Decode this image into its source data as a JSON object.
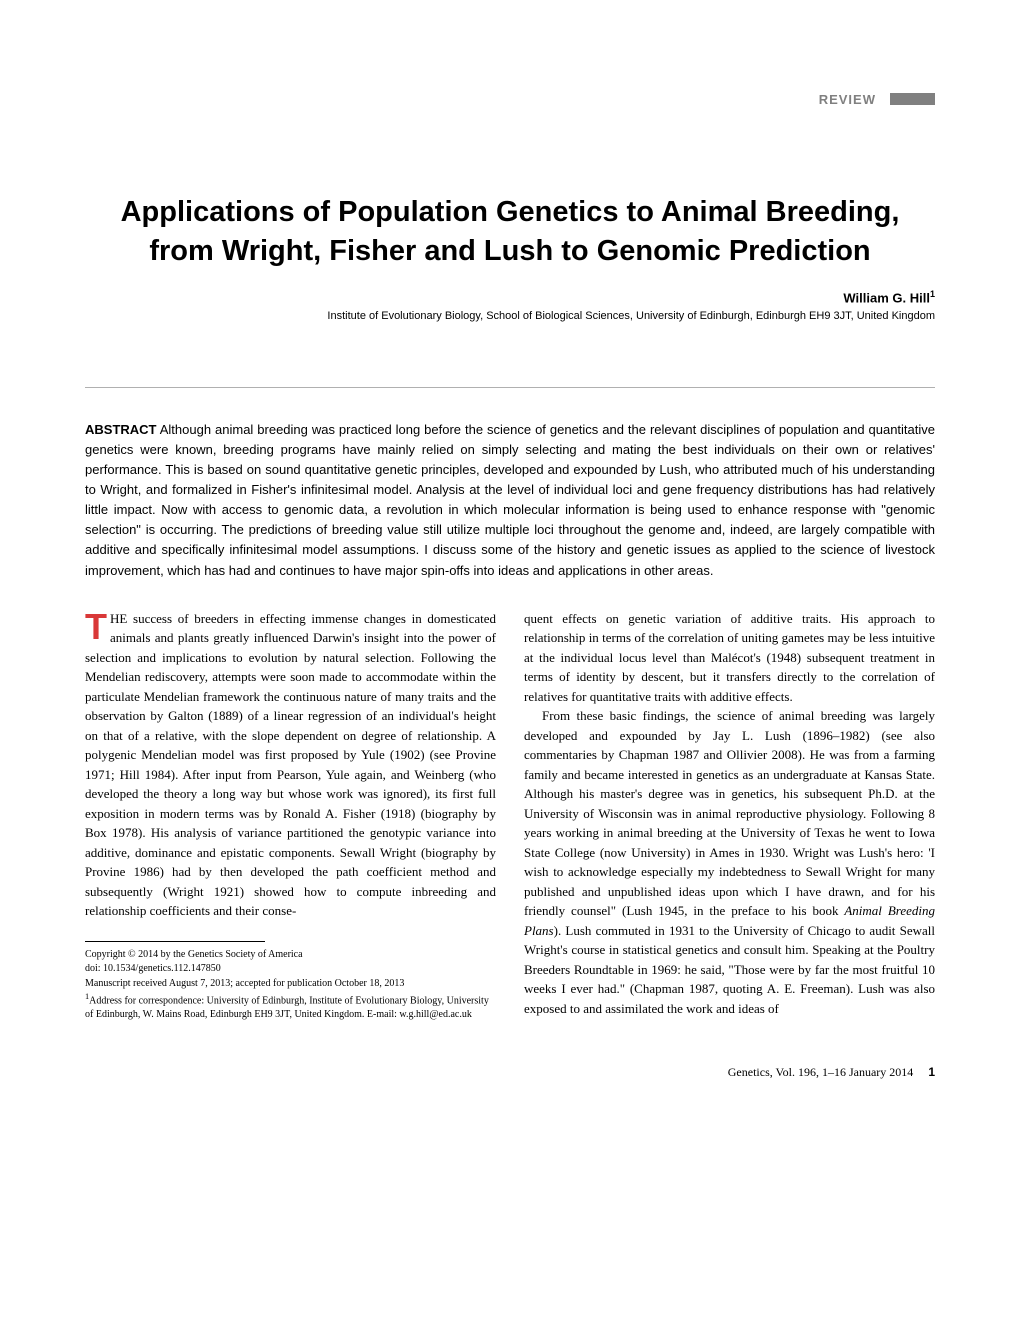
{
  "header": {
    "review_label": "REVIEW"
  },
  "title": "Applications of Population Genetics to Animal Breeding, from Wright, Fisher and Lush to Genomic Prediction",
  "author": {
    "name": "William G. Hill",
    "sup": "1"
  },
  "affiliation": "Institute of Evolutionary Biology, School of Biological Sciences, University of Edinburgh, Edinburgh EH9 3JT, United Kingdom",
  "abstract": {
    "label": "ABSTRACT",
    "text": " Although animal breeding was practiced long before the science of genetics and the relevant disciplines of population and quantitative genetics were known, breeding programs have mainly relied on simply selecting and mating the best individuals on their own or relatives' performance. This is based on sound quantitative genetic principles, developed and expounded by Lush, who attributed much of his understanding to Wright, and formalized in Fisher's infinitesimal model. Analysis at the level of individual loci and gene frequency distributions has had relatively little impact. Now with access to genomic data, a revolution in which molecular information is being used to enhance response with \"genomic selection\" is occurring. The predictions of breeding value still utilize multiple loci throughout the genome and, indeed, are largely compatible with additive and specifically infinitesimal model assumptions. I discuss some of the history and genetic issues as applied to the science of livestock improvement, which has had and continues to have major spin-offs into ideas and applications in other areas."
  },
  "body": {
    "col1": {
      "dropcap": "T",
      "first_word_rest": "HE",
      "p1": " success of breeders in effecting immense changes in domesticated animals and plants greatly influenced Darwin's insight into the power of selection and implications to evolution by natural selection. Following the Mendelian rediscovery, attempts were soon made to accommodate within the particulate Mendelian framework the continuous nature of many traits and the observation by Galton (1889) of a linear regression of an individual's height on that of a relative, with the slope dependent on degree of relationship. A polygenic Mendelian model was first proposed by Yule (1902) (see Provine 1971; Hill 1984). After input from Pearson, Yule again, and Weinberg (who developed the theory a long way but whose work was ignored), its first full exposition in modern terms was by Ronald A. Fisher (1918) (biography by Box 1978). His analysis of variance partitioned the genotypic variance into additive, dominance and epistatic components. Sewall Wright (biography by Provine 1986) had by then developed the path coefficient method and subsequently (Wright 1921) showed how to compute inbreeding and relationship coefficients and their conse-"
    },
    "col2": {
      "p1": "quent effects on genetic variation of additive traits. His approach to relationship in terms of the correlation of uniting gametes may be less intuitive at the individual locus level than Malécot's (1948) subsequent treatment in terms of identity by descent, but it transfers directly to the correlation of relatives for quantitative traits with additive effects.",
      "p2_part1": "From these basic findings, the science of animal breeding was largely developed and expounded by Jay L. Lush (1896–1982) (see also commentaries by Chapman 1987 and Ollivier 2008). He was from a farming family and became interested in genetics as an undergraduate at Kansas State. Although his master's degree was in genetics, his subsequent Ph.D. at the University of Wisconsin was in animal reproductive physiology. Following 8 years working in animal breeding at the University of Texas he went to Iowa State College (now University) in Ames in 1930. Wright was Lush's hero: 'I wish to acknowledge especially my indebtedness to Sewall Wright for many published and unpublished ideas upon which I have drawn, and for his friendly counsel\" (Lush 1945, in the preface to his book ",
      "p2_italic": "Animal Breeding Plans",
      "p2_part2": "). Lush commuted in 1931 to the University of Chicago to audit Sewall Wright's course in statistical genetics and consult him. Speaking at the Poultry Breeders Roundtable in 1969: he said, \"Those were by far the most fruitful 10 weeks I ever had.\" (Chapman 1987, quoting A. E. Freeman). Lush was also exposed to and assimilated the work and ideas of"
    }
  },
  "footnotes": {
    "copyright": "Copyright © 2014 by the Genetics Society of America",
    "doi": "doi: 10.1534/genetics.112.147850",
    "manuscript": "Manuscript received August 7, 2013; accepted for publication October 18, 2013",
    "address_sup": "1",
    "address": "Address for correspondence: University of Edinburgh, Institute of Evolutionary Biology, University of Edinburgh, W. Mains Road, Edinburgh EH9 3JT, United Kingdom. E-mail: w.g.hill@ed.ac.uk"
  },
  "footer": {
    "citation": "Genetics, Vol. 196, 1–16    January 2014",
    "page": "1"
  },
  "styles": {
    "accent_color": "#d93838",
    "gray_color": "#808080",
    "text_color": "#000000",
    "background_color": "#ffffff",
    "divider_color": "#b0b0b0",
    "title_fontsize": 29,
    "author_fontsize": 13,
    "affiliation_fontsize": 11,
    "abstract_fontsize": 13,
    "body_fontsize": 13,
    "footnote_fontsize": 10,
    "dropcap_fontsize": 36
  }
}
